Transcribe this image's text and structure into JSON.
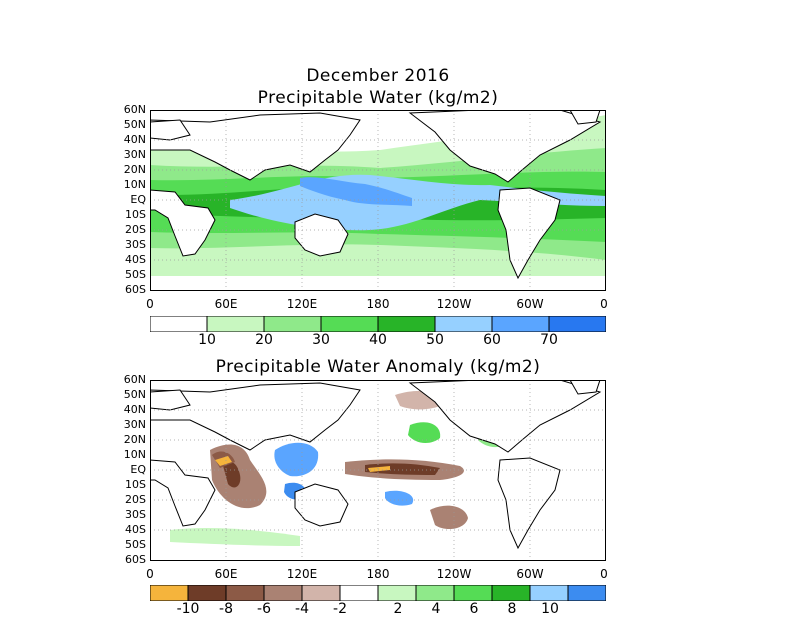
{
  "panel_top": {
    "title_line1": "December 2016",
    "title_line2": "Precipitable Water (kg/m2)",
    "colorbar": {
      "colors": [
        "#ffffff",
        "#c8f7c0",
        "#8fe98a",
        "#55dc55",
        "#28b428",
        "#96d0ff",
        "#5aa5ff",
        "#2878f0"
      ],
      "labels": [
        "10",
        "20",
        "30",
        "40",
        "50",
        "60",
        "70"
      ]
    }
  },
  "panel_bottom": {
    "title": "Precipitable Water Anomaly (kg/m2)",
    "colorbar": {
      "colors": [
        "#f5b43c",
        "#6e3c28",
        "#8c5a46",
        "#aa8273",
        "#d2b4aa",
        "#ffffff",
        "#c8f7c0",
        "#8fe98a",
        "#55dc55",
        "#28b428",
        "#96d0ff",
        "#3c8cf0"
      ],
      "labels": [
        "-10",
        "-8",
        "-6",
        "-4",
        "-2",
        "2",
        "4",
        "6",
        "8",
        "10"
      ]
    }
  },
  "lat_labels": [
    "60N",
    "50N",
    "40N",
    "30N",
    "20N",
    "10N",
    "EQ",
    "10S",
    "20S",
    "30S",
    "40S",
    "50S",
    "60S"
  ],
  "lon_labels": [
    "0",
    "60E",
    "120E",
    "180",
    "120W",
    "60W",
    "0"
  ]
}
